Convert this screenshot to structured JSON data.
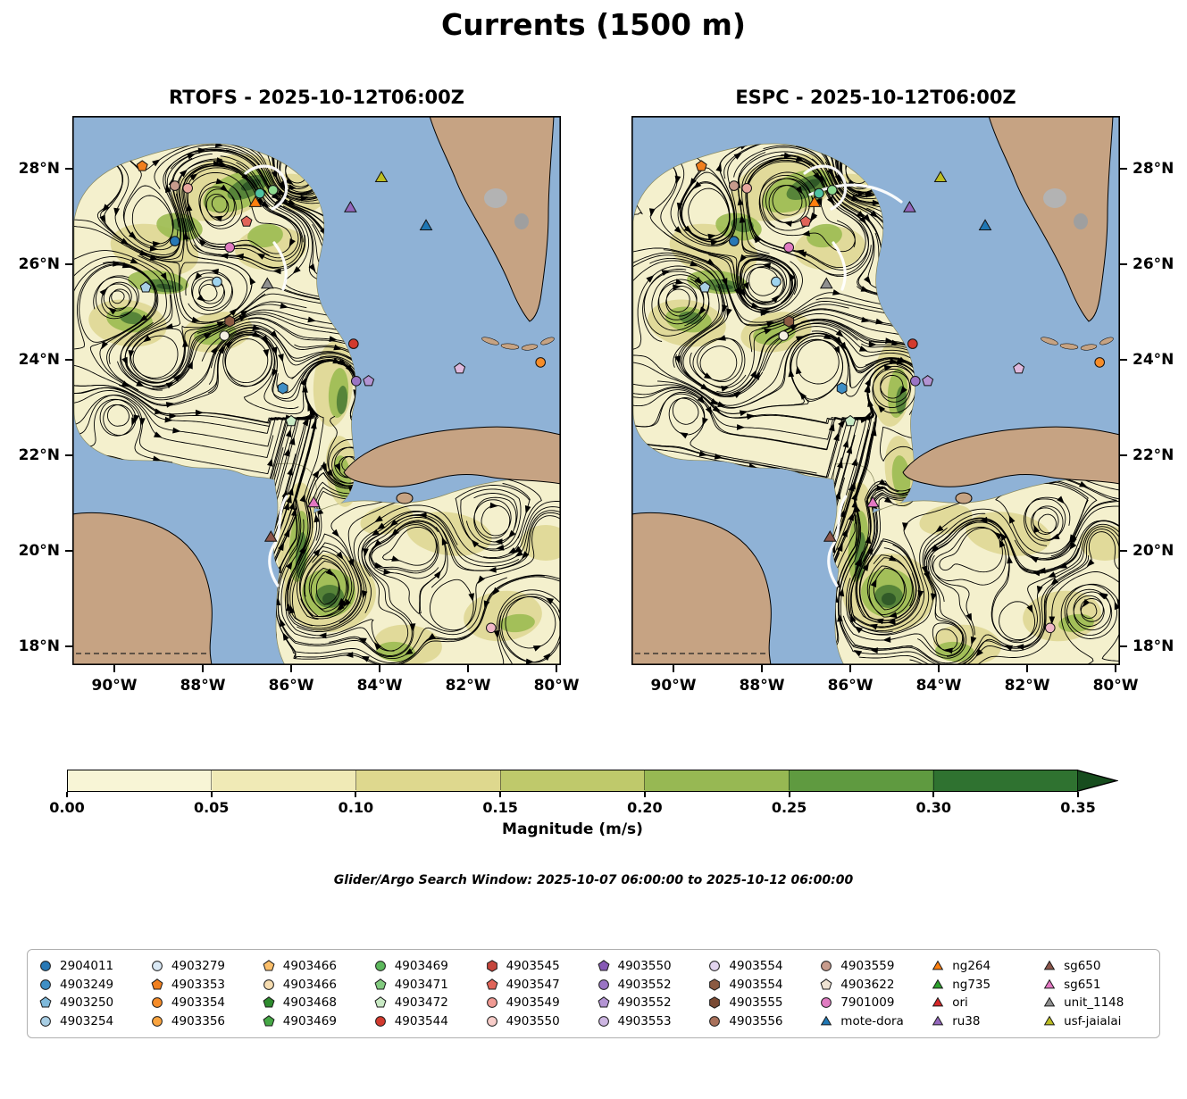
{
  "figure": {
    "title": "Currents (1500 m)",
    "search_window": "Glider/Argo Search Window: 2025-10-07 06:00:00 to 2025-10-12 06:00:00"
  },
  "panels": [
    {
      "title": "RTOFS - 2025-10-12T06:00Z"
    },
    {
      "title": "ESPC - 2025-10-12T06:00Z"
    }
  ],
  "axes": {
    "lat_tick_labels": [
      "28°N",
      "26°N",
      "24°N",
      "22°N",
      "20°N",
      "18°N"
    ],
    "lat_tick_values": [
      28,
      26,
      24,
      22,
      20,
      18
    ],
    "lon_tick_labels": [
      "90°W",
      "88°W",
      "86°W",
      "84°W",
      "82°W",
      "80°W"
    ],
    "lon_tick_values": [
      -90,
      -88,
      -86,
      -84,
      -82,
      -80
    ]
  },
  "colorbar": {
    "label": "Magnitude (m/s)",
    "tick_labels": [
      "0.00",
      "0.05",
      "0.10",
      "0.15",
      "0.20",
      "0.25",
      "0.30",
      "0.35"
    ],
    "tick_values": [
      0,
      0.05,
      0.1,
      0.15,
      0.2,
      0.25,
      0.3,
      0.35
    ],
    "extend": "max",
    "block_colors": [
      "#f8f5d6",
      "#f0eab6",
      "#ded88e",
      "#bfc96b",
      "#97b853",
      "#5f9a40",
      "#2f7230"
    ],
    "extend_color": "#174d1e"
  },
  "map_colors": {
    "ocean": "#8fb2d6",
    "land": "#c6a383",
    "coastline": "#000000",
    "streamline": "#000000",
    "track": "#ffffff",
    "field_pale": "#f4f0cd",
    "field_khaki": "#ddd691",
    "field_green": "#9cbb52",
    "field_dark_green": "#4f7d35",
    "field_darkest": "#2d5527"
  },
  "legend": {
    "entries": [
      {
        "label": "2904011",
        "shape": "circle",
        "color": "#2878b5"
      },
      {
        "label": "4903249",
        "shape": "circle",
        "color": "#3f8fc5"
      },
      {
        "label": "4903250",
        "shape": "pentagon",
        "color": "#7fb9da"
      },
      {
        "label": "4903254",
        "shape": "circle",
        "color": "#a8cee4"
      },
      {
        "label": "4903279",
        "shape": "circle",
        "color": "#d9e8f4"
      },
      {
        "label": "4903353",
        "shape": "pentagon",
        "color": "#f07f1e"
      },
      {
        "label": "4903354",
        "shape": "circle",
        "color": "#f68c28"
      },
      {
        "label": "4903356",
        "shape": "circle",
        "color": "#faa43f"
      },
      {
        "label": "4903466",
        "shape": "pentagon",
        "color": "#fbbf6b"
      },
      {
        "label": "4903466",
        "shape": "circle",
        "color": "#f6dcb0"
      },
      {
        "label": "4903468",
        "shape": "pentagon",
        "color": "#2e8b2e"
      },
      {
        "label": "4903469",
        "shape": "pentagon",
        "color": "#46a846"
      },
      {
        "label": "4903469",
        "shape": "circle",
        "color": "#5cb85c"
      },
      {
        "label": "4903471",
        "shape": "pentagon",
        "color": "#82ca7f"
      },
      {
        "label": "4903472",
        "shape": "pentagon",
        "color": "#c9eac4"
      },
      {
        "label": "4903544",
        "shape": "circle",
        "color": "#d23a2e"
      },
      {
        "label": "4903545",
        "shape": "hexagon",
        "color": "#c4453c"
      },
      {
        "label": "4903547",
        "shape": "pentagon",
        "color": "#e06459"
      },
      {
        "label": "4903549",
        "shape": "circle",
        "color": "#f09a93"
      },
      {
        "label": "4903550",
        "shape": "circle",
        "color": "#f8cdc9"
      },
      {
        "label": "4903550",
        "shape": "pentagon",
        "color": "#8659b5"
      },
      {
        "label": "4903552",
        "shape": "circle",
        "color": "#9a74c4"
      },
      {
        "label": "4903552",
        "shape": "pentagon",
        "color": "#b394d3"
      },
      {
        "label": "4903553",
        "shape": "circle",
        "color": "#cdb6e2"
      },
      {
        "label": "4903554",
        "shape": "circle",
        "color": "#e3d5ef"
      },
      {
        "label": "4903554",
        "shape": "hexagon",
        "color": "#8b5a42"
      },
      {
        "label": "4903555",
        "shape": "hexagon",
        "color": "#7a4a33"
      },
      {
        "label": "4903556",
        "shape": "circle",
        "color": "#a9715b"
      },
      {
        "label": "4903559",
        "shape": "circle",
        "color": "#c79b8c"
      },
      {
        "label": "4903622",
        "shape": "pentagon",
        "color": "#efe3d3"
      },
      {
        "label": "7901009",
        "shape": "circle",
        "color": "#e07bc1"
      },
      {
        "label": "mote-dora",
        "shape": "triangle",
        "color": "#1f77b4"
      },
      {
        "label": "ng264",
        "shape": "triangle",
        "color": "#ff7f0e"
      },
      {
        "label": "ng735",
        "shape": "triangle",
        "color": "#2ca02c"
      },
      {
        "label": "ori",
        "shape": "triangle",
        "color": "#d62728"
      },
      {
        "label": "ru38",
        "shape": "triangle",
        "color": "#9467bd"
      },
      {
        "label": "sg650",
        "shape": "triangle",
        "color": "#8c564b"
      },
      {
        "label": "sg651",
        "shape": "triangle",
        "color": "#e377c2"
      },
      {
        "label": "unit_1148",
        "shape": "triangle",
        "color": "#909090"
      },
      {
        "label": "usf-jaialai",
        "shape": "triangle",
        "color": "#bcbd22"
      }
    ]
  },
  "chart_data": {
    "type": "heatmap",
    "title": "Currents (1500 m)",
    "description": "Two-panel map comparison of ocean current magnitude (filled, 0-0.35+ m/s) with direction streamlines at 1500 m depth over the Gulf of Mexico; markers show glider/Argo positions.",
    "subplots": [
      "RTOFS - 2025-10-12T06:00Z",
      "ESPC - 2025-10-12T06:00Z"
    ],
    "x": {
      "ticks": [
        -90,
        -88,
        -86,
        -84,
        -82,
        -80
      ],
      "range": [
        -90.95,
        -79.9
      ]
    },
    "y": {
      "ticks": [
        28,
        26,
        24,
        22,
        20,
        18
      ],
      "range": [
        17.6,
        29.1
      ]
    },
    "colorbar": {
      "label": "Magnitude (m/s)",
      "ticks": [
        0,
        0.05,
        0.1,
        0.15,
        0.2,
        0.25,
        0.3,
        0.35
      ],
      "extend": "max"
    },
    "overlay": "streamlines",
    "instruments": [
      {
        "shape": "pentagon",
        "color": "#f07f1e",
        "lon": -89.37,
        "lat": 28.05
      },
      {
        "shape": "circle",
        "color": "#c79b8c",
        "lon": -88.63,
        "lat": 27.64
      },
      {
        "shape": "circle",
        "color": "#e8a79e",
        "lon": -88.34,
        "lat": 27.59
      },
      {
        "shape": "circle",
        "color": "#4fc3a1",
        "lon": -86.71,
        "lat": 27.48
      },
      {
        "shape": "circle",
        "color": "#8fd98f",
        "lon": -86.41,
        "lat": 27.55
      },
      {
        "id": "ng264",
        "shape": "triangle",
        "color": "#ff7f0e",
        "lon": -86.81,
        "lat": 27.29
      },
      {
        "shape": "pentagon",
        "color": "#e06459",
        "lon": -87.01,
        "lat": 26.89
      },
      {
        "id": "ru38",
        "shape": "triangle",
        "color": "#9467bd",
        "lon": -84.66,
        "lat": 27.18
      },
      {
        "id": "usf-jaialai",
        "shape": "triangle",
        "color": "#bcbd22",
        "lon": -83.96,
        "lat": 27.81
      },
      {
        "id": "mote-dora",
        "shape": "triangle",
        "color": "#1f77b4",
        "lon": -82.95,
        "lat": 26.8
      },
      {
        "shape": "circle",
        "color": "#2878b5",
        "lon": -88.63,
        "lat": 26.48
      },
      {
        "id": "7901009",
        "shape": "circle",
        "color": "#e07bc1",
        "lon": -87.39,
        "lat": 26.35
      },
      {
        "shape": "pentagon",
        "color": "#a8cee4",
        "lon": -89.29,
        "lat": 25.51
      },
      {
        "shape": "circle",
        "color": "#9fd4ee",
        "lon": -87.68,
        "lat": 25.63
      },
      {
        "id": "unit_1148",
        "shape": "triangle",
        "color": "#909090",
        "lon": -86.54,
        "lat": 25.58
      },
      {
        "shape": "hexagon",
        "color": "#8b5a42",
        "lon": -87.39,
        "lat": 24.8
      },
      {
        "shape": "circle",
        "color": "#f4efe2",
        "lon": -87.51,
        "lat": 24.5
      },
      {
        "shape": "circle",
        "color": "#d23a2e",
        "lon": -84.59,
        "lat": 24.33
      },
      {
        "shape": "circle",
        "color": "#f68c28",
        "lon": -80.36,
        "lat": 23.94
      },
      {
        "shape": "pentagon",
        "color": "#dfb8dd",
        "lon": -82.19,
        "lat": 23.81
      },
      {
        "shape": "circle",
        "color": "#9a74c4",
        "lon": -84.53,
        "lat": 23.55
      },
      {
        "shape": "pentagon",
        "color": "#b394d3",
        "lon": -84.25,
        "lat": 23.55
      },
      {
        "shape": "hexagon",
        "color": "#3f8fc5",
        "lon": -86.19,
        "lat": 23.4
      },
      {
        "shape": "pentagon",
        "color": "#c9eac4",
        "lon": -86.0,
        "lat": 22.71
      },
      {
        "id": "sg651",
        "shape": "triangle",
        "color": "#e377c2",
        "lon": -85.49,
        "lat": 21.0
      },
      {
        "id": "sg650",
        "shape": "triangle",
        "color": "#8c564b",
        "lon": -86.46,
        "lat": 20.28
      },
      {
        "shape": "circle",
        "color": "#f0b8c8",
        "lon": -81.48,
        "lat": 18.38
      }
    ]
  }
}
